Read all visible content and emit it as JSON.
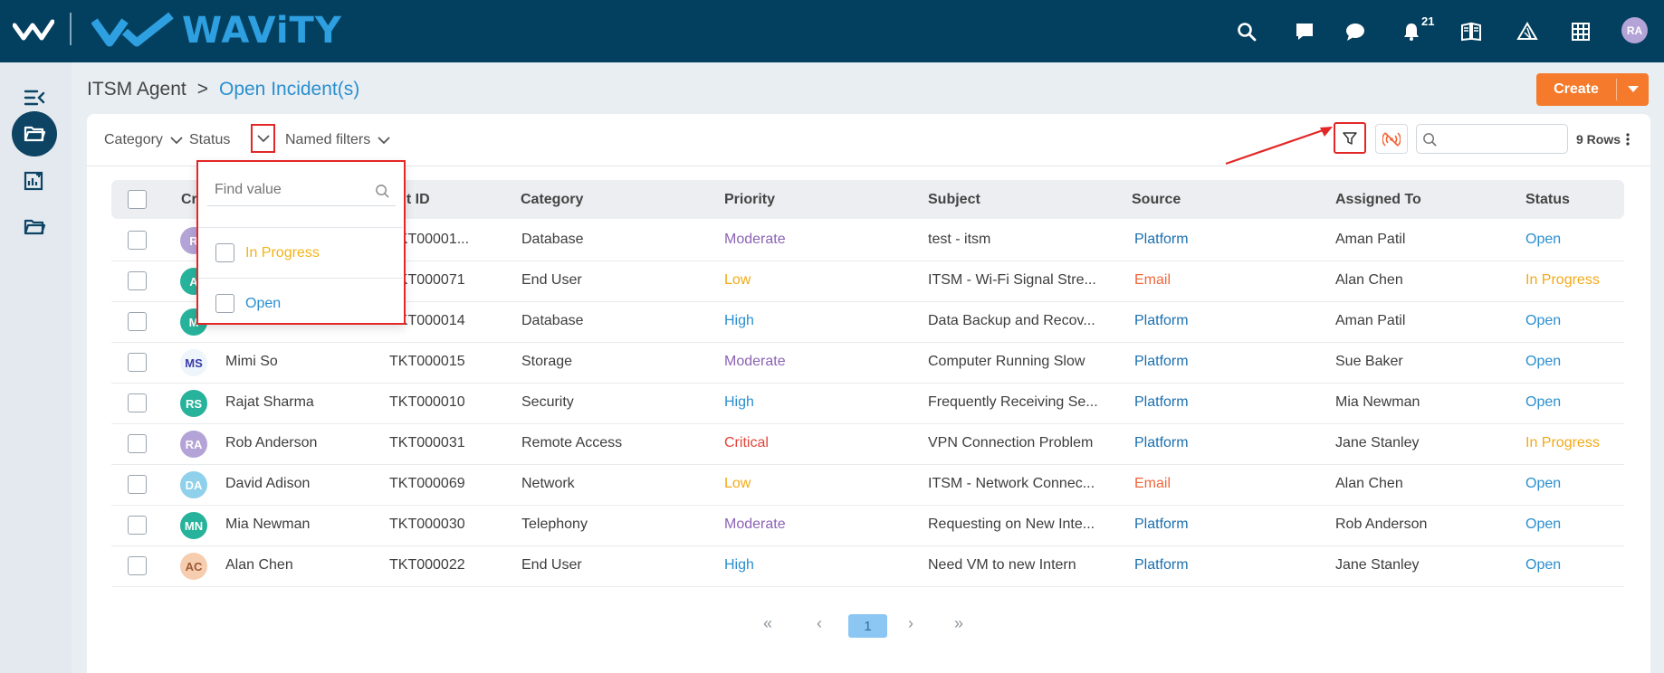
{
  "brand": {
    "name": "WAViTY"
  },
  "topbar": {
    "notification_count": "21",
    "user_initials": "RA"
  },
  "breadcrumb": {
    "root": "ITSM Agent",
    "separator": ">",
    "current": "Open Incident(s)"
  },
  "create_button": {
    "label": "Create"
  },
  "filters": {
    "category": "Category",
    "status": "Status",
    "named": "Named filters"
  },
  "toolbar": {
    "rows_label": "9 Rows",
    "search_placeholder": ""
  },
  "table": {
    "headers": [
      "Cr",
      "ident ID",
      "Category",
      "Priority",
      "Subject",
      "Source",
      "Assigned To",
      "Status"
    ],
    "rows": [
      {
        "initials": "R",
        "avatar_color": "#b3a3d6",
        "name": "",
        "id": "TKT00001...",
        "category": "Database",
        "priority": "Moderate",
        "priority_color": "#8b63b5",
        "subject": "test - itsm",
        "source": "Platform",
        "source_color": "#1b6fae",
        "assigned": "Aman Patil",
        "status": "Open",
        "status_color": "#2a8fcf"
      },
      {
        "initials": "A",
        "avatar_color": "#27b39b",
        "name": "",
        "id": "TKT000071",
        "category": "End User",
        "priority": "Low",
        "priority_color": "#f2a917",
        "subject": "ITSM - Wi-Fi Signal Stre...",
        "source": "Email",
        "source_color": "#f0663a",
        "assigned": "Alan Chen",
        "status": "In Progress",
        "status_color": "#f2a917"
      },
      {
        "initials": "M",
        "avatar_color": "#27b39b",
        "name": "",
        "id": "TKT000014",
        "category": "Database",
        "priority": "High",
        "priority_color": "#2a8fcf",
        "subject": "Data Backup and Recov...",
        "source": "Platform",
        "source_color": "#1b6fae",
        "assigned": "Aman Patil",
        "status": "Open",
        "status_color": "#2a8fcf"
      },
      {
        "initials": "MS",
        "avatar_color": "#eef6fb",
        "avatar_text": "#3a3aa8",
        "name": "Mimi So",
        "id": "TKT000015",
        "category": "Storage",
        "priority": "Moderate",
        "priority_color": "#8b63b5",
        "subject": "Computer Running Slow",
        "source": "Platform",
        "source_color": "#1b6fae",
        "assigned": "Sue Baker",
        "status": "Open",
        "status_color": "#2a8fcf"
      },
      {
        "initials": "RS",
        "avatar_color": "#27b39b",
        "name": "Rajat Sharma",
        "id": "TKT000010",
        "category": "Security",
        "priority": "High",
        "priority_color": "#2a8fcf",
        "subject": "Frequently Receiving Se...",
        "source": "Platform",
        "source_color": "#1b6fae",
        "assigned": "Mia Newman",
        "status": "Open",
        "status_color": "#2a8fcf"
      },
      {
        "initials": "RA",
        "avatar_color": "#b3a3d6",
        "name": "Rob Anderson",
        "id": "TKT000031",
        "category": "Remote Access",
        "priority": "Critical",
        "priority_color": "#e0453a",
        "subject": "VPN Connection Problem",
        "source": "Platform",
        "source_color": "#1b6fae",
        "assigned": "Jane Stanley",
        "status": "In Progress",
        "status_color": "#f2a917"
      },
      {
        "initials": "DA",
        "avatar_color": "#8fd0ea",
        "name": "David Adison",
        "id": "TKT000069",
        "category": "Network",
        "priority": "Low",
        "priority_color": "#f2a917",
        "subject": "ITSM - Network Connec...",
        "source": "Email",
        "source_color": "#f0663a",
        "assigned": "Alan Chen",
        "status": "Open",
        "status_color": "#2a8fcf"
      },
      {
        "initials": "MN",
        "avatar_color": "#27b39b",
        "name": "Mia Newman",
        "id": "TKT000030",
        "category": "Telephony",
        "priority": "Moderate",
        "priority_color": "#8b63b5",
        "subject": "Requesting on New Inte...",
        "source": "Platform",
        "source_color": "#1b6fae",
        "assigned": "Rob Anderson",
        "status": "Open",
        "status_color": "#2a8fcf"
      },
      {
        "initials": "AC",
        "avatar_color": "#f7cdb0",
        "avatar_text": "#9a5a34",
        "name": "Alan Chen",
        "id": "TKT000022",
        "category": "End User",
        "priority": "High",
        "priority_color": "#2a8fcf",
        "subject": "Need VM to new Intern",
        "source": "Platform",
        "source_color": "#1b6fae",
        "assigned": "Jane Stanley",
        "status": "Open",
        "status_color": "#2a8fcf"
      }
    ]
  },
  "pagination": {
    "first": "«",
    "prev": "‹",
    "current": "1",
    "next": "›",
    "last": "»"
  },
  "status_dropdown": {
    "search_placeholder": "Find value",
    "options": [
      {
        "label": "In Progress",
        "color": "#f2b417"
      },
      {
        "label": "Open",
        "color": "#2a8fcf"
      }
    ]
  },
  "colors": {
    "topbar": "#03405f",
    "accent": "#f57a2c",
    "annotation": "#e32727"
  }
}
